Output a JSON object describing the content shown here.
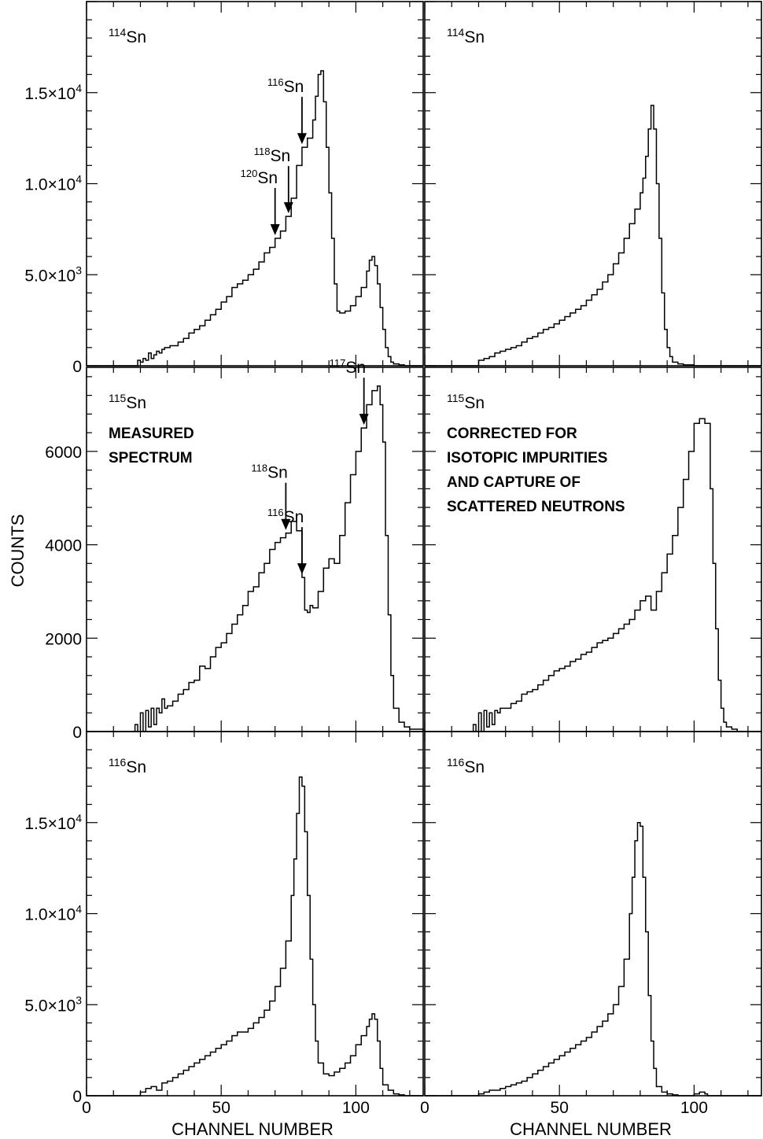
{
  "chart_data": {
    "type": "line",
    "ylabel": "COUNTS",
    "xlabel": "CHANNEL NUMBER",
    "x_ticks": [
      "0",
      "50",
      "100"
    ],
    "xlim": [
      0,
      125
    ],
    "panels": [
      {
        "id": "p114_measured",
        "row": 0,
        "col": 0,
        "isotope": {
          "mass": "114",
          "symbol": "Sn"
        },
        "ylim": [
          0,
          20000
        ],
        "y_ticks": [
          {
            "value": 0,
            "base": "0",
            "exp": ""
          },
          {
            "value": 5000,
            "base": "5.0×10",
            "exp": "3"
          },
          {
            "value": 10000,
            "base": "1.0×10",
            "exp": "4"
          },
          {
            "value": 15000,
            "base": "1.5×10",
            "exp": "4"
          }
        ],
        "notes": [],
        "markers": [
          {
            "mass": "116",
            "symbol": "Sn",
            "x": 80
          },
          {
            "mass": "118",
            "symbol": "Sn",
            "x": 75
          },
          {
            "mass": "120",
            "symbol": "Sn",
            "x": 70
          }
        ],
        "x": [
          0,
          17,
          19,
          20,
          21,
          22,
          23,
          24,
          25,
          26,
          27,
          28,
          29,
          30,
          31,
          32,
          34,
          36,
          38,
          40,
          42,
          44,
          46,
          48,
          50,
          52,
          54,
          56,
          58,
          60,
          62,
          64,
          66,
          68,
          70,
          72,
          74,
          76,
          78,
          80,
          82,
          84,
          85,
          86,
          87,
          88,
          89,
          90,
          91,
          92,
          93,
          94,
          96,
          98,
          100,
          102,
          104,
          105,
          106,
          107,
          108,
          109,
          110,
          111,
          112,
          113,
          114,
          116,
          118,
          120,
          125
        ],
        "y": [
          0,
          0,
          300,
          200,
          400,
          300,
          700,
          400,
          600,
          800,
          700,
          900,
          1000,
          1000,
          1100,
          1100,
          1300,
          1500,
          1800,
          2000,
          2200,
          2500,
          2800,
          3100,
          3500,
          3800,
          4300,
          4500,
          4700,
          5000,
          5300,
          5700,
          6200,
          6500,
          7000,
          7400,
          8200,
          9200,
          11000,
          12000,
          12500,
          13500,
          14800,
          16000,
          16200,
          14500,
          12000,
          9500,
          7000,
          4500,
          3000,
          2900,
          3000,
          3300,
          3800,
          4300,
          5200,
          5800,
          6000,
          5500,
          4500,
          3200,
          2000,
          1000,
          500,
          200,
          100,
          50,
          0,
          0,
          0
        ],
        "show_x_labels": false
      },
      {
        "id": "p114_corrected",
        "row": 0,
        "col": 1,
        "isotope": {
          "mass": "114",
          "symbol": "Sn"
        },
        "ylim": [
          0,
          20000
        ],
        "y_ticks": [],
        "notes": [],
        "markers": [],
        "x": [
          0,
          17,
          20,
          22,
          24,
          26,
          28,
          30,
          32,
          34,
          36,
          38,
          40,
          42,
          44,
          46,
          48,
          50,
          52,
          54,
          56,
          58,
          60,
          62,
          64,
          66,
          68,
          70,
          72,
          74,
          76,
          78,
          80,
          81,
          82,
          83,
          84,
          85,
          86,
          87,
          88,
          89,
          90,
          91,
          92,
          94,
          96,
          100,
          110,
          125
        ],
        "y": [
          0,
          0,
          300,
          400,
          500,
          700,
          800,
          900,
          1000,
          1100,
          1300,
          1500,
          1600,
          1800,
          2000,
          2100,
          2300,
          2500,
          2700,
          2900,
          3100,
          3300,
          3600,
          3900,
          4200,
          4600,
          5000,
          5600,
          6200,
          7000,
          7800,
          8600,
          9500,
          10300,
          11500,
          13000,
          14300,
          13000,
          10000,
          7000,
          4000,
          2000,
          1000,
          500,
          200,
          100,
          50,
          0,
          0,
          0
        ],
        "show_x_labels": false
      },
      {
        "id": "p115_measured",
        "row": 1,
        "col": 0,
        "isotope": {
          "mass": "115",
          "symbol": "Sn"
        },
        "ylim": [
          0,
          7800
        ],
        "y_ticks": [
          {
            "value": 0,
            "base": "0",
            "exp": ""
          },
          {
            "value": 2000,
            "base": "2000",
            "exp": ""
          },
          {
            "value": 4000,
            "base": "4000",
            "exp": ""
          },
          {
            "value": 6000,
            "base": "6000",
            "exp": ""
          }
        ],
        "notes": [
          "MEASURED",
          "SPECTRUM"
        ],
        "markers": [
          {
            "mass": "117",
            "symbol": "Sn",
            "x": 103
          },
          {
            "mass": "116",
            "symbol": "Sn",
            "x": 80
          },
          {
            "mass": "118",
            "symbol": "Sn",
            "x": 74
          }
        ],
        "x": [
          0,
          17,
          18,
          19,
          20,
          21,
          22,
          23,
          24,
          25,
          26,
          27,
          28,
          29,
          30,
          32,
          34,
          36,
          38,
          40,
          42,
          44,
          46,
          48,
          50,
          52,
          54,
          56,
          58,
          60,
          62,
          64,
          66,
          68,
          70,
          72,
          74,
          76,
          78,
          80,
          81,
          82,
          83,
          84,
          86,
          88,
          90,
          92,
          94,
          96,
          98,
          100,
          102,
          104,
          106,
          108,
          109,
          110,
          111,
          112,
          113,
          114,
          116,
          118,
          120,
          125
        ],
        "y": [
          0,
          0,
          150,
          0,
          400,
          0,
          450,
          100,
          500,
          150,
          500,
          400,
          700,
          500,
          550,
          650,
          800,
          900,
          1050,
          1100,
          1400,
          1350,
          1600,
          1800,
          1900,
          2100,
          2300,
          2500,
          2700,
          3000,
          3100,
          3400,
          3600,
          3900,
          4050,
          4150,
          4250,
          4500,
          4300,
          3300,
          2600,
          2550,
          2700,
          2650,
          3000,
          3500,
          3700,
          3600,
          4200,
          4900,
          5500,
          6000,
          6500,
          7000,
          7300,
          7400,
          7000,
          6200,
          4200,
          2500,
          1200,
          500,
          200,
          100,
          50,
          0
        ],
        "show_x_labels": false
      },
      {
        "id": "p115_corrected",
        "row": 1,
        "col": 1,
        "isotope": {
          "mass": "115",
          "symbol": "Sn"
        },
        "ylim": [
          0,
          7800
        ],
        "y_ticks": [],
        "notes": [
          "CORRECTED FOR",
          "ISOTOPIC  IMPURITIES",
          "AND CAPTURE OF",
          "SCATTERED  NEUTRONS"
        ],
        "markers": [],
        "x": [
          0,
          17,
          18,
          19,
          20,
          21,
          22,
          23,
          24,
          25,
          26,
          27,
          28,
          30,
          32,
          34,
          36,
          38,
          40,
          42,
          44,
          46,
          48,
          50,
          52,
          54,
          56,
          58,
          60,
          62,
          64,
          66,
          68,
          70,
          72,
          74,
          76,
          78,
          80,
          82,
          84,
          86,
          88,
          90,
          92,
          94,
          96,
          98,
          100,
          102,
          104,
          106,
          107,
          108,
          109,
          110,
          111,
          112,
          114,
          116,
          118,
          120,
          125
        ],
        "y": [
          0,
          0,
          150,
          0,
          400,
          0,
          450,
          100,
          400,
          150,
          450,
          400,
          500,
          500,
          600,
          650,
          800,
          850,
          900,
          1000,
          1100,
          1200,
          1300,
          1350,
          1400,
          1500,
          1550,
          1650,
          1700,
          1800,
          1900,
          1950,
          2000,
          2100,
          2200,
          2300,
          2400,
          2600,
          2800,
          2900,
          2600,
          3000,
          3400,
          3800,
          4200,
          4800,
          5400,
          6000,
          6600,
          6700,
          6600,
          5200,
          3600,
          2200,
          1100,
          500,
          200,
          100,
          50,
          0,
          0,
          0,
          0
        ],
        "show_x_labels": false
      },
      {
        "id": "p116_measured",
        "row": 2,
        "col": 0,
        "isotope": {
          "mass": "116",
          "symbol": "Sn"
        },
        "ylim": [
          0,
          20000
        ],
        "y_ticks": [
          {
            "value": 0,
            "base": "0",
            "exp": ""
          },
          {
            "value": 5000,
            "base": "5.0×10",
            "exp": "3"
          },
          {
            "value": 10000,
            "base": "1.0×10",
            "exp": "4"
          },
          {
            "value": 15000,
            "base": "1.5×10",
            "exp": "4"
          }
        ],
        "notes": [],
        "markers": [],
        "x": [
          0,
          17,
          20,
          22,
          24,
          26,
          28,
          30,
          32,
          34,
          36,
          38,
          40,
          42,
          44,
          46,
          48,
          50,
          52,
          54,
          56,
          58,
          60,
          62,
          64,
          66,
          68,
          70,
          72,
          74,
          76,
          77,
          78,
          79,
          80,
          81,
          82,
          83,
          84,
          85,
          86,
          88,
          90,
          92,
          94,
          96,
          98,
          100,
          102,
          104,
          105,
          106,
          107,
          108,
          109,
          110,
          112,
          114,
          116,
          118,
          120,
          125
        ],
        "y": [
          0,
          0,
          200,
          400,
          500,
          300,
          700,
          800,
          1000,
          1200,
          1400,
          1600,
          1800,
          2000,
          2200,
          2400,
          2600,
          2800,
          3000,
          3300,
          3500,
          3500,
          3700,
          4000,
          4300,
          4700,
          5200,
          6000,
          7000,
          8500,
          11000,
          13000,
          15500,
          17500,
          17000,
          14500,
          11000,
          7500,
          5000,
          3000,
          1800,
          1200,
          1100,
          1300,
          1500,
          1800,
          2200,
          2800,
          3300,
          3800,
          4200,
          4500,
          4200,
          3000,
          1500,
          600,
          300,
          100,
          50,
          0,
          0,
          0
        ],
        "show_x_labels": true
      },
      {
        "id": "p116_corrected",
        "row": 2,
        "col": 1,
        "isotope": {
          "mass": "116",
          "symbol": "Sn"
        },
        "ylim": [
          0,
          20000
        ],
        "y_ticks": [],
        "notes": [],
        "markers": [],
        "x": [
          0,
          17,
          20,
          22,
          24,
          26,
          28,
          30,
          32,
          34,
          36,
          38,
          40,
          42,
          44,
          46,
          48,
          50,
          52,
          54,
          56,
          58,
          60,
          62,
          64,
          66,
          68,
          70,
          72,
          74,
          76,
          77,
          78,
          79,
          80,
          81,
          82,
          83,
          84,
          85,
          86,
          88,
          90,
          92,
          94,
          96,
          98,
          100,
          102,
          104,
          105,
          106,
          107,
          108,
          110,
          112,
          114,
          116,
          118,
          120,
          125
        ],
        "y": [
          0,
          0,
          100,
          200,
          300,
          300,
          400,
          500,
          600,
          700,
          800,
          1000,
          1200,
          1400,
          1600,
          1800,
          2000,
          2200,
          2400,
          2600,
          2800,
          3000,
          3200,
          3500,
          3800,
          4100,
          4500,
          5000,
          6000,
          7500,
          10000,
          12000,
          14000,
          15000,
          14800,
          12000,
          9000,
          5500,
          3000,
          1500,
          500,
          200,
          100,
          50,
          0,
          0,
          0,
          100,
          200,
          100,
          0,
          0,
          0,
          0,
          0,
          0,
          0,
          0,
          0,
          0,
          0
        ],
        "show_x_labels": true
      }
    ]
  }
}
